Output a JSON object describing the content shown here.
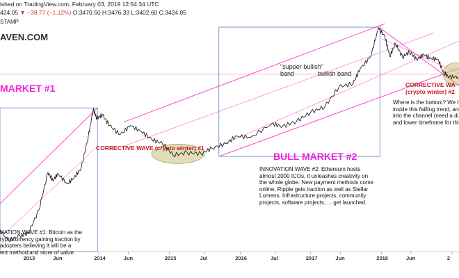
{
  "header": {
    "line1": "ished on TradingView.com, February 03, 2019 12:54:34 UTC",
    "price_prefix": "424.05",
    "change": "▼ −38.77 (−1.12%)",
    "ohlc": "O:3470.50  H:3476.33  L:3402.60  C:3424.05",
    "stamp": "STAMP",
    "watermark": "AVEN.COM"
  },
  "annotations": {
    "bear1": "MARKET #1",
    "corrective1": "CORRECTIVE WAVE (crypto winter) #1",
    "bull2": "BULL MARKET #2",
    "supper_bullish_1": "\"supper bullish\"",
    "supper_bullish_2": "band",
    "bullish_band": "bullish band",
    "corrective2_1": "CORRECTIVE WA",
    "corrective2_2": "(crypto winter) #2"
  },
  "paragraphs": {
    "innovation2": [
      "INNOVATION WAVE #2: Ethereum hosts",
      "almost 2000 ICOs, it unleashes creativity on",
      "the whole globe. New payment methods come",
      "online, Ripple gets traction as well as Stellar",
      "Lumens. Infrastructure projects, community",
      "projects, software projects, ... get launched."
    ],
    "bottom": [
      "Where is the bottom? We h",
      "inside this failling trend, and",
      "into the channel (need a di",
      "and lower timeframe for thi"
    ],
    "innovation1": [
      "NATION WAVE #1: Bitcoin as the",
      "ryptocurrency gaining traction by",
      "adopters believing it will be a",
      "ent method and store of value."
    ]
  },
  "chart_data": {
    "type": "line",
    "xlabel": "",
    "ylabel": "",
    "x_ticks": [
      "2013",
      "Jun",
      "2014",
      "Jun",
      "2015",
      "Jul",
      "2016",
      "Jul",
      "2017",
      "Jun",
      "2018",
      "Jun",
      "2"
    ],
    "series": [
      {
        "values": [
          [
            2012.55,
            18
          ],
          [
            2012.72,
            11
          ],
          [
            2012.88,
            13
          ],
          [
            2013.0,
            14
          ],
          [
            2013.15,
            32
          ],
          [
            2013.28,
            120
          ],
          [
            2013.35,
            90
          ],
          [
            2013.42,
            115
          ],
          [
            2013.55,
            80
          ],
          [
            2013.65,
            100
          ],
          [
            2013.75,
            140
          ],
          [
            2013.85,
            420
          ],
          [
            2013.92,
            1100
          ],
          [
            2013.97,
            800
          ],
          [
            2014.05,
            900
          ],
          [
            2014.15,
            620
          ],
          [
            2014.3,
            450
          ],
          [
            2014.45,
            620
          ],
          [
            2014.6,
            500
          ],
          [
            2014.75,
            380
          ],
          [
            2014.9,
            330
          ],
          [
            2015.05,
            220
          ],
          [
            2015.25,
            240
          ],
          [
            2015.45,
            230
          ],
          [
            2015.6,
            280
          ],
          [
            2015.8,
            330
          ],
          [
            2015.95,
            430
          ],
          [
            2016.15,
            410
          ],
          [
            2016.45,
            660
          ],
          [
            2016.6,
            600
          ],
          [
            2016.8,
            720
          ],
          [
            2017.0,
            990
          ],
          [
            2017.2,
            1200
          ],
          [
            2017.4,
            2400
          ],
          [
            2017.6,
            2700
          ],
          [
            2017.7,
            4500
          ],
          [
            2017.85,
            7000
          ],
          [
            2017.96,
            19000
          ],
          [
            2018.05,
            14000
          ],
          [
            2018.12,
            7000
          ],
          [
            2018.2,
            11000
          ],
          [
            2018.3,
            6800
          ],
          [
            2018.4,
            8200
          ],
          [
            2018.5,
            6300
          ],
          [
            2018.6,
            7500
          ],
          [
            2018.7,
            6500
          ],
          [
            2018.8,
            6400
          ],
          [
            2018.88,
            4000
          ],
          [
            2018.96,
            3400
          ],
          [
            2019.09,
            3424
          ]
        ]
      }
    ],
    "log_scale": true,
    "xlim": [
      2012.6,
      2019.1
    ],
    "ylim": [
      10,
      20000
    ],
    "colors": {
      "price": "#222222",
      "channel": "#ff33cc",
      "box": "#5b7fc7",
      "ellipse_fill": "#c9c37a",
      "annotation_magenta": "#ee22dd",
      "annotation_red": "#c0182a"
    }
  }
}
